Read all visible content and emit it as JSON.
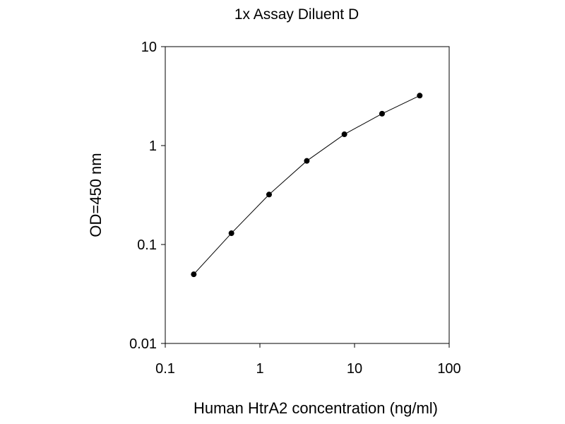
{
  "chart_data": {
    "type": "scatter",
    "title": "1x Assay Diluent D",
    "xlabel": "Human HtrA2 concentration (ng/ml)",
    "ylabel": "OD=450 nm",
    "x_scale": "log",
    "y_scale": "log",
    "xlim": [
      0.1,
      100
    ],
    "ylim": [
      0.01,
      10
    ],
    "x_ticks": [
      "0.1",
      "1",
      "10",
      "100"
    ],
    "y_ticks": [
      "0.01",
      "0.1",
      "1",
      "10"
    ],
    "grid": false,
    "legend": "none",
    "connected": true,
    "series": [
      {
        "color": "#000000",
        "x": [
          0.2,
          0.5,
          1.25,
          3.13,
          7.81,
          19.53,
          48.83
        ],
        "y": [
          0.05,
          0.13,
          0.32,
          0.7,
          1.3,
          2.1,
          3.2
        ]
      }
    ]
  }
}
